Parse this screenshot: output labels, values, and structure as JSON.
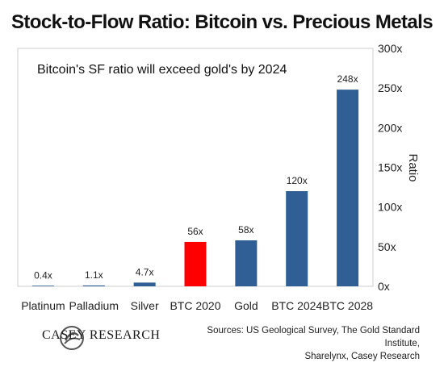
{
  "chart_data": {
    "type": "bar",
    "title": "Stock-to-Flow Ratio: Bitcoin vs. Precious Metals",
    "annotation": "Bitcoin's SF ratio will exceed gold's by 2024",
    "ylabel": "Ratio",
    "ylim": [
      0,
      300
    ],
    "yticks": [
      "0x",
      "50x",
      "100x",
      "150x",
      "200x",
      "250x",
      "300x"
    ],
    "yaxis_side": "right",
    "categories": [
      "Platinum",
      "Palladium",
      "Silver",
      "BTC 2020",
      "Gold",
      "BTC 2024",
      "BTC 2028"
    ],
    "values": [
      0.4,
      1.1,
      4.7,
      56,
      58,
      120,
      248
    ],
    "data_labels": [
      "0.4x",
      "1.1x",
      "4.7x",
      "56x",
      "58x",
      "120x",
      "248x"
    ],
    "colors": [
      "#2f5f94",
      "#2f5f94",
      "#2f5f94",
      "#ff0000",
      "#2f5f94",
      "#2f5f94",
      "#2f5f94"
    ],
    "grid": false,
    "legend": "none"
  },
  "footer": {
    "brand": "CASEY RESEARCH",
    "sources_line1": "Sources: US Geological Survey, The Gold Standard Institute,",
    "sources_line2": "Sharelynx, Casey Research"
  }
}
